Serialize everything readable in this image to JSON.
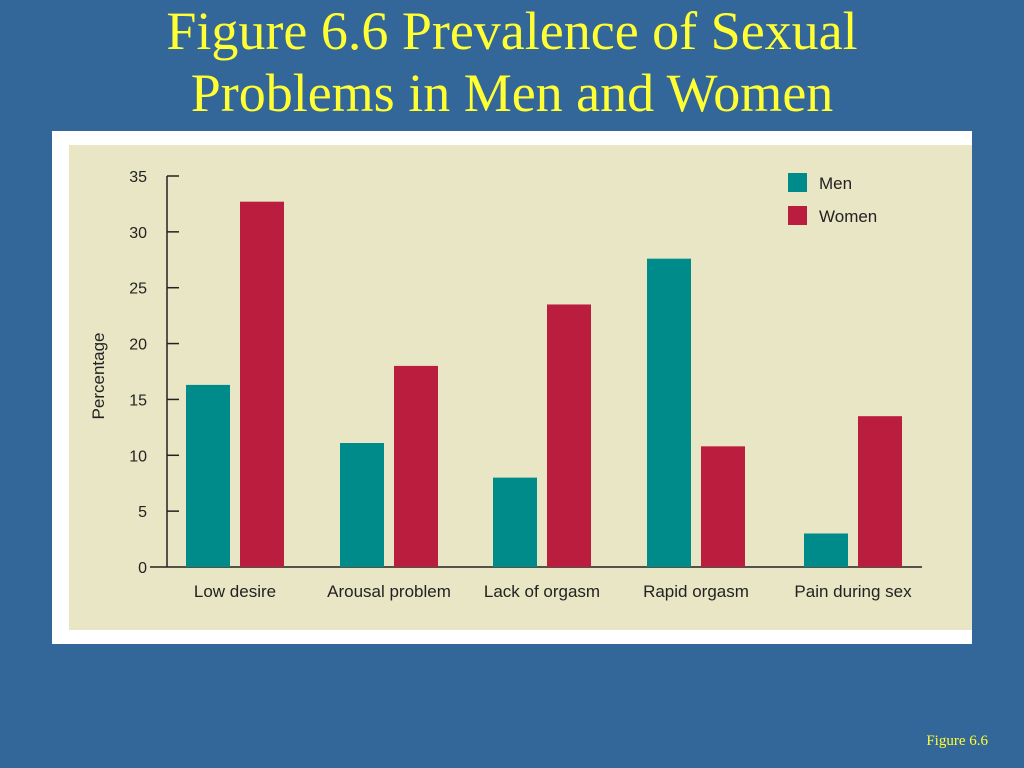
{
  "slide": {
    "title_line1": "Figure 6.6  Prevalence of Sexual",
    "title_line2": "Problems in Men and Women",
    "footer": "Figure 6.6"
  },
  "colors": {
    "background": "#336699",
    "title": "#ffff33",
    "plot_area": "#e8e6c4",
    "men": "#008b8b",
    "women": "#bb1d3e"
  },
  "chart_data": {
    "type": "bar",
    "categories": [
      "Low desire",
      "Arousal problem",
      "Lack of orgasm",
      "Rapid orgasm",
      "Pain during sex"
    ],
    "series": [
      {
        "name": "Men",
        "values": [
          16.3,
          11.1,
          8.0,
          27.6,
          3.0
        ]
      },
      {
        "name": "Women",
        "values": [
          32.7,
          18.0,
          23.5,
          10.8,
          13.5
        ]
      }
    ],
    "ylabel": "Percentage",
    "xlabel": "",
    "ylim": [
      0,
      35
    ],
    "yticks": [
      0,
      5,
      10,
      15,
      20,
      25,
      30,
      35
    ],
    "grid": false,
    "legend_position": "top-right"
  }
}
